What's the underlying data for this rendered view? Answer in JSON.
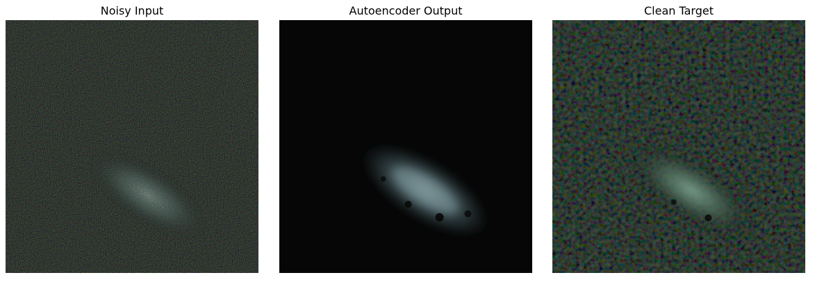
{
  "figure": {
    "panels": [
      {
        "title": "Noisy Input",
        "image": "noisy-galaxy-image"
      },
      {
        "title": "Autoencoder Output",
        "image": "denoised-galaxy-image"
      },
      {
        "title": "Clean Target",
        "image": "clean-galaxy-image"
      }
    ],
    "colors": {
      "background": "#ffffff",
      "image_black": "#060606",
      "galaxy_noisy": "#6f867f",
      "galaxy_output": "#6b8487",
      "galaxy_clean": "#5c7a6a"
    }
  }
}
